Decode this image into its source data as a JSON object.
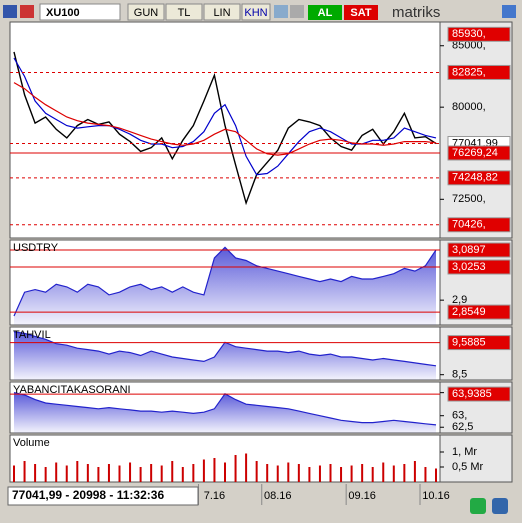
{
  "toolbar": {
    "symbol": "XU100",
    "buttons": [
      "GUN",
      "TL",
      "LIN",
      "KHN"
    ],
    "buy": "AL",
    "sell": "SAT",
    "logo": "matriks"
  },
  "status": "77041,99 - 20998 - 11:32:36",
  "chart_data": [
    {
      "type": "line",
      "ylim": [
        69350,
        86770
      ],
      "yticks": [
        {
          "value": 72500,
          "label": "72500,"
        },
        {
          "value": 80000,
          "label": "80000,"
        },
        {
          "value": 85000,
          "label": "85000,"
        }
      ],
      "series": [
        {
          "color": "#000000",
          "values": [
            84500,
            81000,
            78700,
            79200,
            78200,
            77500,
            78500,
            79000,
            78600,
            78800,
            77800,
            77200,
            76400,
            76700,
            77500,
            75800,
            77300,
            78500,
            80500,
            82600,
            78500,
            75300,
            72200,
            74500,
            75500,
            76500,
            78300,
            79000,
            78800,
            78500,
            77500,
            76800,
            76500,
            77700,
            78200,
            77000,
            78000,
            79500,
            77500,
            77600,
            77041.99
          ]
        },
        {
          "color": "#0000cc",
          "values": [
            84000,
            82500,
            80500,
            79500,
            79000,
            78500,
            78300,
            78400,
            78500,
            78500,
            78200,
            77800,
            77300,
            77000,
            77000,
            76700,
            76800,
            77200,
            78000,
            79500,
            80200,
            78500,
            76000,
            74500,
            74600,
            75200,
            76200,
            77200,
            78000,
            78300,
            78000,
            77500,
            77000,
            77000,
            77300,
            77300,
            77500,
            78300,
            78000,
            77700,
            77500
          ]
        },
        {
          "color": "#dd0000",
          "values": [
            82000,
            81500,
            80800,
            80200,
            79700,
            79200,
            78900,
            78700,
            78600,
            78500,
            78300,
            78000,
            77700,
            77400,
            77200,
            77000,
            76900,
            77000,
            77300,
            77800,
            78200,
            78000,
            77300,
            76600,
            76200,
            76100,
            76200,
            76600,
            77000,
            77300,
            77400,
            77300,
            77100,
            77000,
            77000,
            76900,
            77000,
            77200,
            77200,
            77200,
            77100
          ]
        }
      ],
      "levels": [
        {
          "value": 85930,
          "label": "85930,",
          "line": "none",
          "color": "#e00000"
        },
        {
          "value": 82825,
          "label": "82825,",
          "line": "dashed",
          "color": "#e00000"
        },
        {
          "value": 77041.99,
          "label": "77041,99",
          "line": "dashed",
          "color": "#ffffff"
        },
        {
          "value": 76269.24,
          "label": "76269,24",
          "line": "solid",
          "color": "#e00000"
        },
        {
          "value": 74248.82,
          "label": "74248,82",
          "line": "dashed",
          "color": "#e00000"
        },
        {
          "value": 70426,
          "label": "70426,",
          "line": "dashed",
          "color": "#e00000"
        }
      ]
    },
    {
      "type": "area",
      "title": "USDTRY",
      "color": "#2222cc",
      "ylim": [
        2.806,
        3.12
      ],
      "yticks": [
        {
          "value": 2.9,
          "label": "2,9"
        }
      ],
      "values": [
        2.84,
        2.93,
        2.94,
        2.93,
        2.96,
        2.95,
        2.93,
        2.96,
        2.95,
        2.92,
        2.93,
        2.95,
        2.96,
        2.94,
        2.95,
        2.93,
        2.95,
        2.93,
        2.92,
        3.06,
        3.1,
        3.06,
        3.05,
        3.03,
        3.02,
        3.01,
        3.0,
        2.99,
        2.98,
        2.97,
        2.98,
        2.97,
        2.99,
        2.98,
        2.98,
        2.99,
        3.0,
        3.02,
        3.01,
        3.03,
        3.09
      ],
      "levels": [
        {
          "value": 3.0897,
          "label": "3,0897",
          "line": "solid",
          "color": "#e00000"
        },
        {
          "value": 3.0253,
          "label": "3,0253",
          "line": "solid",
          "color": "#e00000"
        },
        {
          "value": 2.8549,
          "label": "2,8549",
          "line": "solid",
          "color": "#e00000"
        }
      ]
    },
    {
      "type": "area",
      "title": "TAHVIL",
      "color": "#2222cc",
      "ylim": [
        8.32,
        10.05
      ],
      "yticks": [
        {
          "value": 8.5,
          "label": "8,5"
        }
      ],
      "values": [
        9.95,
        9.9,
        9.8,
        9.7,
        9.55,
        9.5,
        9.4,
        9.35,
        9.3,
        9.2,
        9.3,
        9.25,
        9.15,
        9.3,
        9.2,
        9.1,
        9.05,
        9.0,
        8.95,
        9.1,
        9.6,
        9.45,
        9.4,
        9.35,
        9.3,
        9.3,
        9.25,
        9.3,
        9.2,
        9.15,
        9.2,
        9.1,
        9.1,
        9.05,
        9.0,
        9.05,
        9.0,
        8.95,
        8.9,
        8.85,
        8.8
      ],
      "levels": [
        {
          "value": 9.5885,
          "label": "9,5885",
          "line": "solid",
          "color": "#e00000"
        }
      ]
    },
    {
      "type": "area",
      "title": "YABANCITAKASORANI",
      "color": "#2222cc",
      "ylim": [
        62.25,
        64.375
      ],
      "yticks": [
        {
          "value": 62.5,
          "label": "62,5"
        },
        {
          "value": 63,
          "label": "63,"
        },
        {
          "value": 64,
          "label": "64,"
        }
      ],
      "values": [
        64.0,
        63.9,
        63.7,
        63.55,
        63.5,
        63.45,
        63.4,
        63.35,
        63.3,
        63.35,
        63.3,
        63.25,
        63.2,
        63.2,
        63.15,
        63.2,
        63.15,
        63.1,
        63.15,
        63.3,
        63.95,
        63.7,
        63.5,
        63.45,
        63.4,
        63.35,
        63.3,
        63.2,
        63.1,
        63.0,
        62.9,
        62.8,
        62.75,
        62.7,
        62.7,
        62.75,
        62.8,
        62.75,
        62.7,
        62.65,
        62.6
      ],
      "levels": [
        {
          "value": 63.9385,
          "label": "63,9385",
          "line": "solid",
          "color": "#e00000"
        }
      ]
    },
    {
      "type": "bar",
      "title": "Volume",
      "color": "#cc0000",
      "ylim": [
        0,
        1.5
      ],
      "yticks": [
        {
          "value": 0.5,
          "label": "0,5 Mr"
        },
        {
          "value": 1,
          "label": "1, Mr"
        }
      ],
      "values": [
        0.55,
        0.7,
        0.6,
        0.5,
        0.65,
        0.55,
        0.7,
        0.6,
        0.5,
        0.6,
        0.55,
        0.65,
        0.5,
        0.6,
        0.55,
        0.7,
        0.5,
        0.6,
        0.75,
        0.8,
        0.65,
        0.9,
        0.95,
        0.7,
        0.6,
        0.55,
        0.65,
        0.6,
        0.5,
        0.55,
        0.6,
        0.5,
        0.55,
        0.6,
        0.5,
        0.65,
        0.55,
        0.6,
        0.7,
        0.5,
        0.45
      ],
      "categories": [
        null,
        null,
        null,
        null,
        null,
        null,
        null,
        null,
        null,
        null,
        null,
        null,
        null,
        null,
        null,
        null,
        null,
        null,
        null,
        "7.16",
        null,
        null,
        null,
        null,
        null,
        "08.16",
        null,
        null,
        null,
        null,
        null,
        null,
        null,
        "09.16",
        null,
        null,
        null,
        null,
        null,
        null,
        "10.16"
      ]
    }
  ]
}
